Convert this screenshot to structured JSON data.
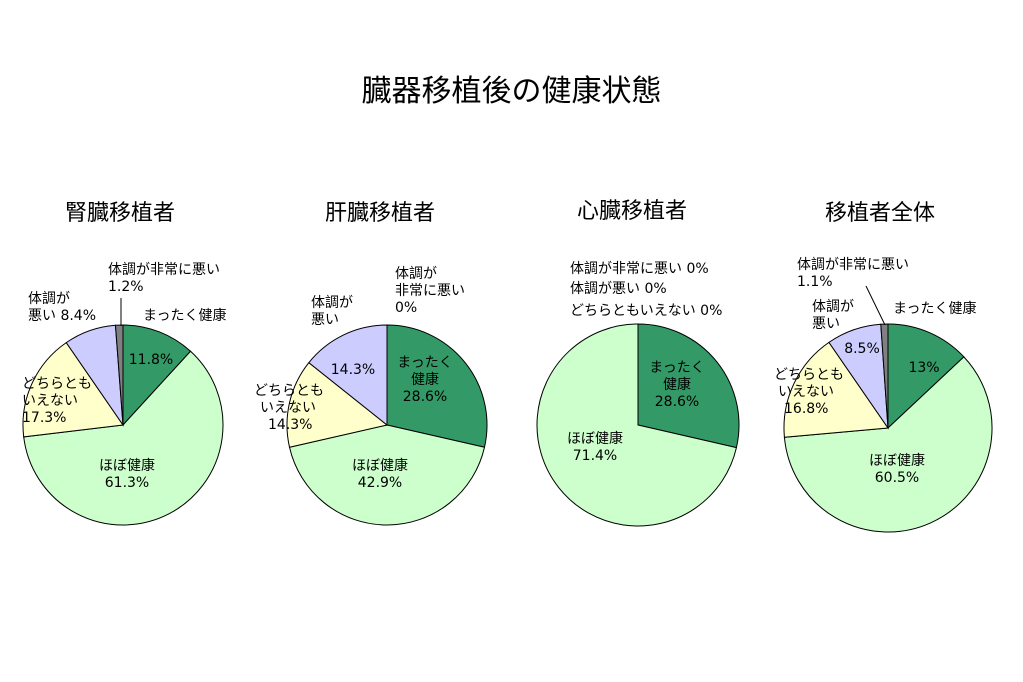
{
  "title": "臓器移植後の健康状態",
  "chart_data": [
    {
      "type": "pie",
      "title": "腎臓移植者",
      "slices": [
        {
          "name": "まったく健康",
          "value": 11.8,
          "label": "11.8%",
          "color": "#339966"
        },
        {
          "name": "ほぼ健康",
          "value": 61.3,
          "label": "61.3%",
          "color": "#CCFFCC"
        },
        {
          "name": "どちらともいえない",
          "value": 17.3,
          "label": "17.3%",
          "color": "#FFFFCC"
        },
        {
          "name": "体調が悪い",
          "value": 8.4,
          "label": "8.4%",
          "color": "#CCCCFF"
        },
        {
          "name": "体調が非常に悪い",
          "value": 1.2,
          "label": "1.2%",
          "color": "#808080"
        }
      ]
    },
    {
      "type": "pie",
      "title": "肝臓移植者",
      "slices": [
        {
          "name": "まったく健康",
          "value": 28.6,
          "label": "28.6%",
          "color": "#339966"
        },
        {
          "name": "ほぼ健康",
          "value": 42.9,
          "label": "42.9%",
          "color": "#CCFFCC"
        },
        {
          "name": "どちらともいえない",
          "value": 14.3,
          "label": "14.3%",
          "color": "#FFFFCC"
        },
        {
          "name": "体調が悪い",
          "value": 14.3,
          "label": "14.3%",
          "color": "#CCCCFF"
        },
        {
          "name": "体調が非常に悪い",
          "value": 0,
          "label": "0%",
          "color": "#808080"
        }
      ]
    },
    {
      "type": "pie",
      "title": "心臓移植者",
      "slices": [
        {
          "name": "まったく健康",
          "value": 28.6,
          "label": "28.6%",
          "color": "#339966"
        },
        {
          "name": "ほぼ健康",
          "value": 71.4,
          "label": "71.4%",
          "color": "#CCFFCC"
        },
        {
          "name": "どちらともいえない",
          "value": 0,
          "label": "0%",
          "color": "#FFFFCC"
        },
        {
          "name": "体調が悪い",
          "value": 0,
          "label": "0%",
          "color": "#CCCCFF"
        },
        {
          "name": "体調が非常に悪い",
          "value": 0,
          "label": "0%",
          "color": "#808080"
        }
      ]
    },
    {
      "type": "pie",
      "title": "移植者全体",
      "slices": [
        {
          "name": "まったく健康",
          "value": 13,
          "label": "13%",
          "color": "#339966"
        },
        {
          "name": "ほぼ健康",
          "value": 60.5,
          "label": "60.5%",
          "color": "#CCFFCC"
        },
        {
          "name": "どちらともいえない",
          "value": 16.8,
          "label": "16.8%",
          "color": "#FFFFCC"
        },
        {
          "name": "体調が悪い",
          "value": 8.5,
          "label": "8.5%",
          "color": "#CCCCFF"
        },
        {
          "name": "体調が非常に悪い",
          "value": 1.1,
          "label": "1.1%",
          "color": "#808080"
        }
      ]
    }
  ]
}
